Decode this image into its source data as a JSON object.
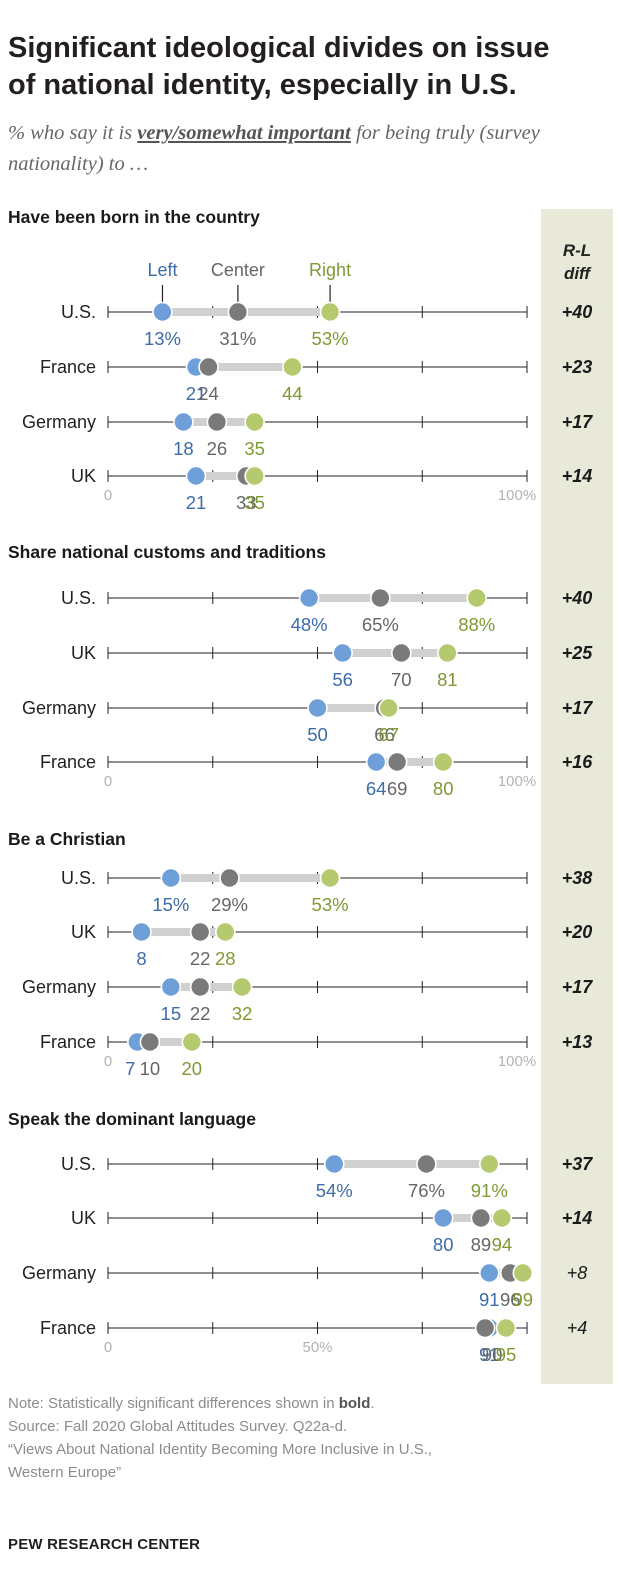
{
  "header": {
    "title_line1": "Significant ideological divides on issue",
    "title_line2": "of national identity, especially in U.S.",
    "subtitle_pre": "% who say it is ",
    "subtitle_emph": "very/somewhat important",
    "subtitle_post": " for being truly (survey nationality) to …"
  },
  "colors": {
    "left": "#6f9fd8",
    "left_text": "#3d6ca8",
    "center": "#7a7a7a",
    "center_text": "#666666",
    "right": "#b5c96e",
    "right_text": "#7e9a34",
    "diff_panel": "#e8e9d8",
    "track": "#d0d0d0"
  },
  "chart_data": {
    "type": "dot-plot",
    "legend": [
      "Left",
      "Center",
      "Right"
    ],
    "diff_header": [
      "R-L",
      "diff"
    ],
    "axis": {
      "min": 0,
      "max": 100,
      "min_label": "0",
      "max_label": "100%",
      "mid_label": "50%"
    },
    "panels": [
      {
        "title": "Have been born in the country",
        "rows": [
          {
            "country": "U.S.",
            "left": 13,
            "center": 31,
            "right": 53,
            "diff": "+40",
            "significant": true
          },
          {
            "country": "France",
            "left": 21,
            "center": 24,
            "right": 44,
            "diff": "+23",
            "significant": true
          },
          {
            "country": "Germany",
            "left": 18,
            "center": 26,
            "right": 35,
            "diff": "+17",
            "significant": true
          },
          {
            "country": "UK",
            "left": 21,
            "center": 33,
            "right": 35,
            "diff": "+14",
            "significant": true
          }
        ]
      },
      {
        "title": "Share national customs and traditions",
        "rows": [
          {
            "country": "U.S.",
            "left": 48,
            "center": 65,
            "right": 88,
            "diff": "+40",
            "significant": true
          },
          {
            "country": "UK",
            "left": 56,
            "center": 70,
            "right": 81,
            "diff": "+25",
            "significant": true
          },
          {
            "country": "Germany",
            "left": 50,
            "center": 66,
            "right": 67,
            "diff": "+17",
            "significant": true
          },
          {
            "country": "France",
            "left": 64,
            "center": 69,
            "right": 80,
            "diff": "+16",
            "significant": true
          }
        ]
      },
      {
        "title": "Be a Christian",
        "rows": [
          {
            "country": "U.S.",
            "left": 15,
            "center": 29,
            "right": 53,
            "diff": "+38",
            "significant": true
          },
          {
            "country": "UK",
            "left": 8,
            "center": 22,
            "right": 28,
            "diff": "+20",
            "significant": true
          },
          {
            "country": "Germany",
            "left": 15,
            "center": 22,
            "right": 32,
            "diff": "+17",
            "significant": true
          },
          {
            "country": "France",
            "left": 7,
            "center": 10,
            "right": 20,
            "diff": "+13",
            "significant": true
          }
        ]
      },
      {
        "title": "Speak the dominant language",
        "rows": [
          {
            "country": "U.S.",
            "left": 54,
            "center": 76,
            "right": 91,
            "diff": "+37",
            "significant": true
          },
          {
            "country": "UK",
            "left": 80,
            "center": 89,
            "right": 94,
            "diff": "+14",
            "significant": true
          },
          {
            "country": "Germany",
            "left": 91,
            "center": 96,
            "right": 99,
            "diff": "+8",
            "significant": false
          },
          {
            "country": "France",
            "left": 91,
            "center": 90,
            "right": 95,
            "diff": "+4",
            "significant": false
          }
        ]
      }
    ]
  },
  "footer": {
    "note_pre": "Note: Statistically significant differences shown in ",
    "note_bold": "bold",
    "note_post": ".",
    "source": "Source: Fall 2020 Global Attitudes Survey. Q22a-d.",
    "report_line1": "“Views About National Identity Becoming More Inclusive in U.S.,",
    "report_line2": "Western Europe”",
    "brand": "PEW RESEARCH CENTER"
  }
}
